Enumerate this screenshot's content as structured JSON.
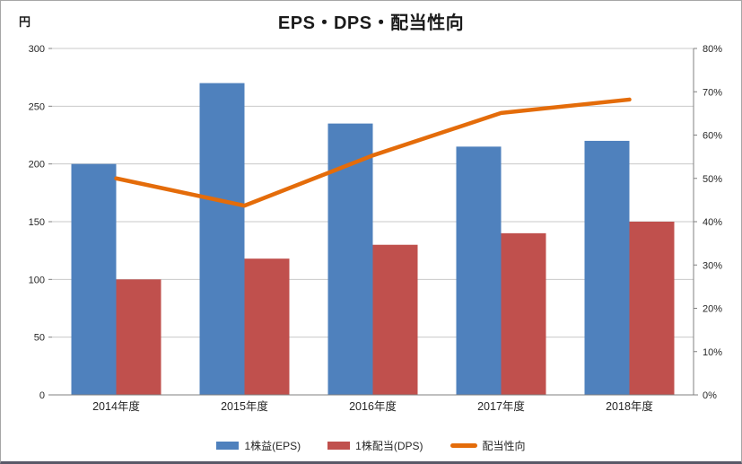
{
  "chart_data": {
    "type": "combo-bar-line",
    "title": "EPS・DPS・配当性向",
    "left_axis": {
      "unit": "円",
      "min": 0,
      "max": 300,
      "step": 50,
      "tick_labels": [
        "0",
        "50",
        "100",
        "150",
        "200",
        "250",
        "300"
      ]
    },
    "right_axis": {
      "min": 0,
      "max": 80,
      "step": 10,
      "tick_labels": [
        "0%",
        "10%",
        "20%",
        "30%",
        "40%",
        "50%",
        "60%",
        "70%",
        "80%"
      ]
    },
    "categories": [
      "2014年度",
      "2015年度",
      "2016年度",
      "2017年度",
      "2018年度"
    ],
    "series": [
      {
        "name": "1株益(EPS)",
        "type": "bar",
        "axis": "left",
        "color": "#4F81BD",
        "values": [
          200,
          270,
          235,
          215,
          220
        ]
      },
      {
        "name": "1株配当(DPS)",
        "type": "bar",
        "axis": "left",
        "color": "#C0504D",
        "values": [
          100,
          118,
          130,
          140,
          150
        ]
      },
      {
        "name": "配当性向",
        "type": "line",
        "axis": "right",
        "color": "#E46C0A",
        "values": [
          50.0,
          43.7,
          55.3,
          65.1,
          68.2
        ]
      }
    ],
    "legend_position": "bottom",
    "grid": true,
    "grid_color": "#c9c9c9",
    "axis_color": "#808080",
    "tick_text_color": "#262626"
  }
}
